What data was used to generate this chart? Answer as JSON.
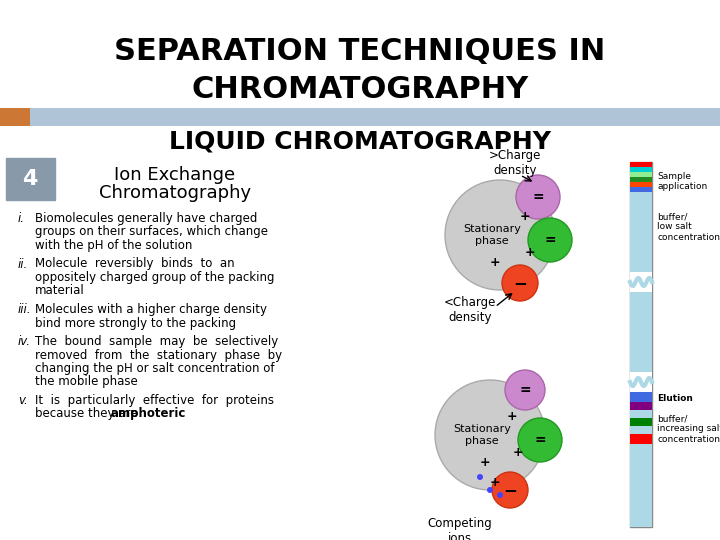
{
  "title_line1": "SEPARATION TECHNIQUES IN",
  "title_line2": "CHROMATOGRAPHY",
  "subtitle": "LIQUID CHROMATOGRAPHY",
  "section_num": "4",
  "section_title_line1": "Ion Exchange",
  "section_title_line2": "Chromatography",
  "bullet_items": [
    {
      "num": "i.",
      "text": "Biomolecules generally have charged\ngroups on their surfaces, which change\nwith the pH of the solution"
    },
    {
      "num": "ii.",
      "text": "Molecule  reversibly  binds  to  an\noppositely charged group of the packing\nmaterial"
    },
    {
      "num": "iii.",
      "text": "Molecules with a higher charge density\nbind more strongly to the packing"
    },
    {
      "num": "iv.",
      "text": "The  bound  sample  may  be  selectively\nremoved  from  the  stationary  phase  by\nchanging the pH or salt concentration of\nthe mobile phase"
    },
    {
      "num": "v.",
      "text": "It  is  particularly  effective  for  proteins\nbecause they are amphoteric"
    }
  ],
  "diagram_labels": {
    "charge_high": ">Charge\ndensity",
    "charge_low": "<Charge\ndensity",
    "stationary1": "Stationary\nphase",
    "stationary2": "Stationary\nphase",
    "competing": "Competing\nions"
  },
  "column_labels": {
    "sample_app": "Sample\napplication",
    "buffer_low": "buffer/\nlow salt\nconcentration",
    "elution": "Elution",
    "buffer_high": "buffer/\nincreasing salt\nconcentration"
  },
  "colors": {
    "title_bg": "#ffffff",
    "header_bar": "#b0c4d8",
    "orange_bar": "#d2691e",
    "section_num_bg": "#8899aa",
    "body_bg": "#ffffff",
    "text_color": "#111111",
    "purple_circle": "#cc88cc",
    "green_circle": "#33aa33",
    "red_circle": "#ee4422",
    "gray_circle": "#bbbbbb",
    "col_light_blue": "#add8e6",
    "col_purple": "#800080",
    "col_green": "#008000",
    "col_red": "#ff0000",
    "col_teal": "#008080",
    "col_dark_blue": "#4169e1"
  }
}
